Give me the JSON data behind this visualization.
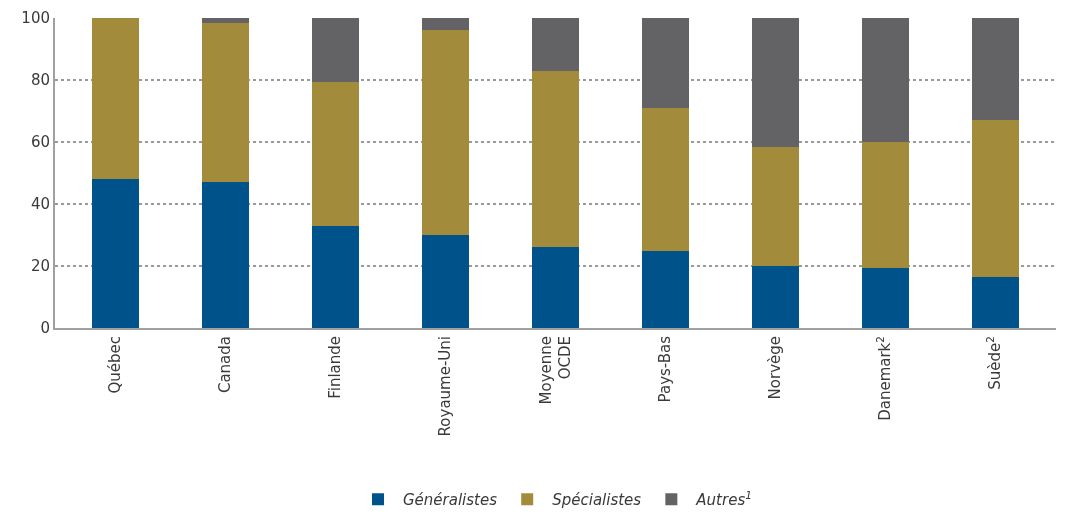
{
  "chart_data": {
    "type": "bar",
    "stacked": true,
    "categories": [
      "Québec",
      "Canada",
      "Finlande",
      "Royaume-Uni",
      "Moyenne\nOCDE",
      "Pays-Bas",
      "Norvège",
      "Danemark$^{2}$",
      "Suède$^{2}$"
    ],
    "series": [
      {
        "name": "Généralistes",
        "color": "#00528a",
        "values": [
          48,
          47,
          33,
          30,
          26,
          25,
          20,
          19.5,
          16.5
        ]
      },
      {
        "name": "Spécialistes",
        "color": "#a38b3c",
        "values": [
          52,
          51.5,
          46.5,
          66,
          57,
          46,
          38.5,
          40.5,
          50.5
        ]
      },
      {
        "name": "Autres$^{1}$",
        "color": "#636365",
        "values": [
          0,
          1.5,
          20.5,
          4,
          17,
          29,
          41.5,
          40,
          33
        ]
      }
    ],
    "ylim": [
      0,
      100
    ],
    "yticks": [
      0,
      20,
      40,
      60,
      80,
      100
    ],
    "grid": "y",
    "legend": "bottom"
  }
}
